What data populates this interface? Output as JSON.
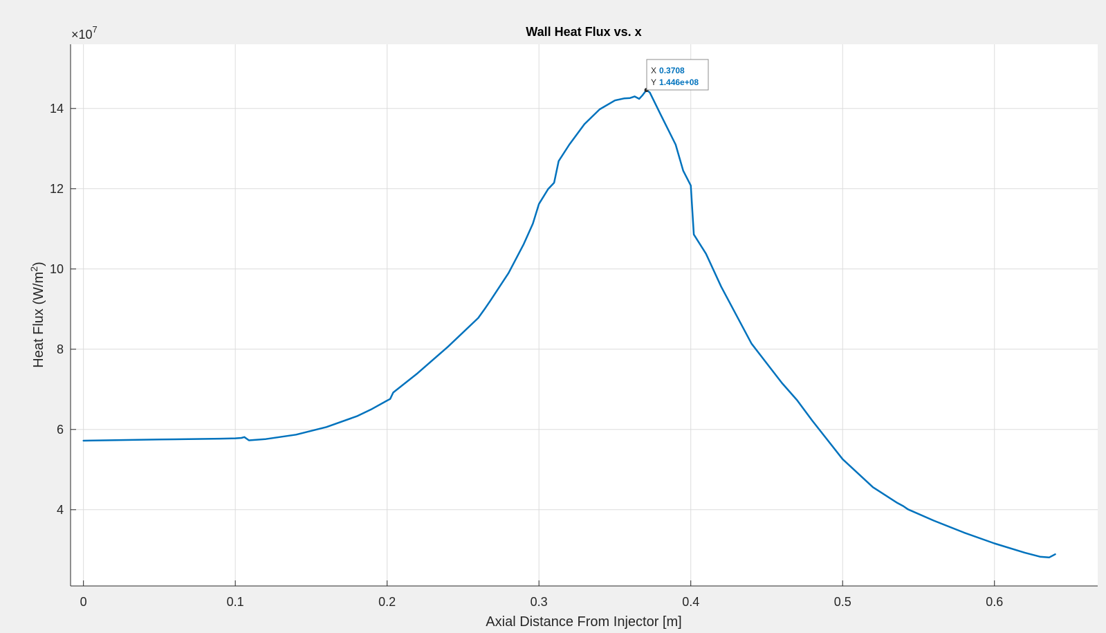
{
  "figure": {
    "background": "#f0f0f0",
    "axes_background": "#ffffff",
    "line_color": "#0072bd",
    "grid_color": "#dcdcdc",
    "axis_color": "#262626"
  },
  "chart_data": {
    "type": "line",
    "title": "Wall Heat Flux vs. x",
    "xlabel": "Axial Distance From Injector [m]",
    "ylabel": "Heat Flux (W/m²)",
    "exponent_label": "×10",
    "exponent_power": "7",
    "xlim": [
      -0.0085,
      0.668
    ],
    "ylim": [
      21000000,
      156000000
    ],
    "grid": true,
    "x_ticks": [
      0,
      0.1,
      0.2,
      0.3,
      0.4,
      0.5,
      0.6
    ],
    "x_tick_labels": [
      "0",
      "0.1",
      "0.2",
      "0.3",
      "0.4",
      "0.5",
      "0.6"
    ],
    "y_ticks": [
      40000000,
      60000000,
      80000000,
      100000000,
      120000000,
      140000000
    ],
    "y_tick_labels": [
      "4",
      "6",
      "8",
      "10",
      "12",
      "14"
    ],
    "series": [
      {
        "x": [
          0,
          0.05,
          0.09,
          0.1,
          0.104,
          0.106,
          0.109,
          0.12,
          0.14,
          0.16,
          0.18,
          0.19,
          0.2,
          0.202,
          0.204,
          0.22,
          0.24,
          0.26,
          0.264,
          0.268,
          0.28,
          0.29,
          0.296,
          0.3,
          0.306,
          0.31,
          0.313,
          0.32,
          0.33,
          0.34,
          0.35,
          0.356,
          0.36,
          0.363,
          0.366,
          0.368,
          0.3708,
          0.373,
          0.38,
          0.39,
          0.395,
          0.4,
          0.402,
          0.41,
          0.42,
          0.44,
          0.46,
          0.47,
          0.48,
          0.5,
          0.52,
          0.536,
          0.54,
          0.543,
          0.56,
          0.58,
          0.6,
          0.62,
          0.63,
          0.636,
          0.64
        ],
        "values": [
          57200000,
          57500000,
          57700000,
          57800000,
          57900000,
          58100000,
          57300000,
          57600000,
          58700000,
          60600000,
          63300000,
          65100000,
          67200000,
          67600000,
          69200000,
          74000000,
          80600000,
          87800000,
          89900000,
          92100000,
          99000000,
          106200000,
          111300000,
          116200000,
          119900000,
          121500000,
          126900000,
          131000000,
          136100000,
          139800000,
          142000000,
          142500000,
          142600000,
          143000000,
          142400000,
          143200000,
          144600000,
          144000000,
          138600000,
          131000000,
          124500000,
          120800000,
          108600000,
          103800000,
          95600000,
          81400000,
          71600000,
          67300000,
          62200000,
          52600000,
          45600000,
          41700000,
          40900000,
          40100000,
          37300000,
          34300000,
          31600000,
          29300000,
          28300000,
          28100000,
          28900000
        ]
      }
    ]
  },
  "datatip": {
    "x_key": "X",
    "x_value": "0.3708",
    "y_key": "Y",
    "y_value": "1.446e+08",
    "point": [
      0.3708,
      144600000
    ]
  }
}
